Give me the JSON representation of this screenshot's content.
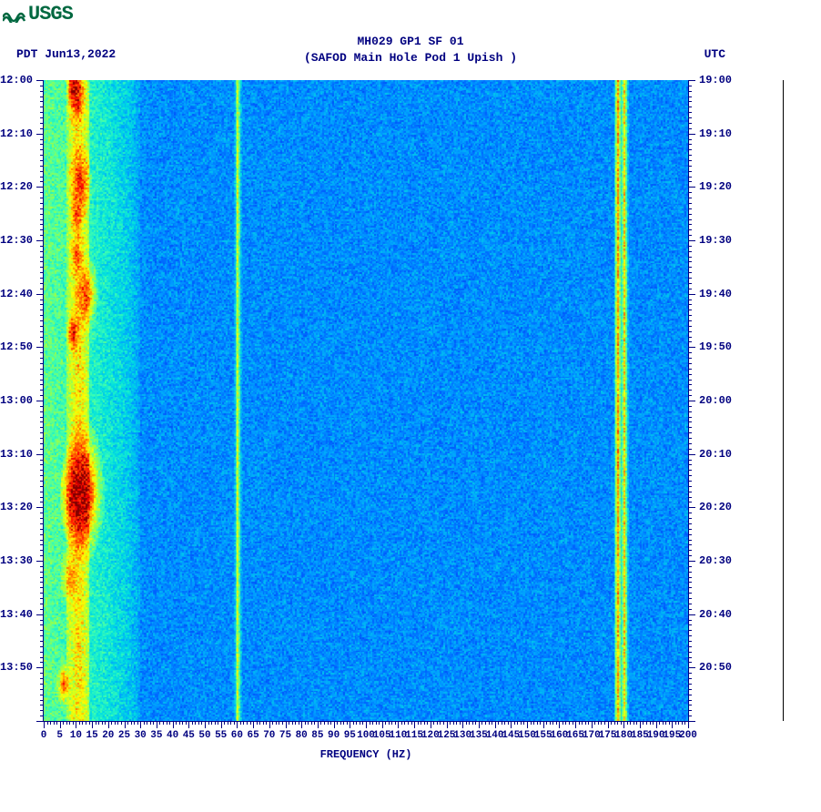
{
  "logo_text": "USGS",
  "title_line1": "MH029 GP1 SF 01",
  "title_line2": "(SAFOD Main Hole Pod 1 Upish )",
  "pdt_label": "PDT  Jun13,2022",
  "utc_label": "UTC",
  "x_axis_title": "FREQUENCY (HZ)",
  "spectrogram": {
    "type": "heatmap",
    "x_range": [
      0,
      200
    ],
    "y_range_minutes": [
      0,
      120
    ],
    "pdt_start_hour": 12,
    "pdt_start_min": 0,
    "utc_start_hour": 19,
    "utc_start_min": 0,
    "tick_interval_min": 10,
    "minor_tick_min": 1,
    "x_tick_interval": 5,
    "x_minor_tick": 1,
    "colormap": {
      "stops": [
        {
          "v": 0.0,
          "c": "#000080"
        },
        {
          "v": 0.12,
          "c": "#0020e0"
        },
        {
          "v": 0.25,
          "c": "#0060ff"
        },
        {
          "v": 0.35,
          "c": "#00a0ff"
        },
        {
          "v": 0.45,
          "c": "#00e0e0"
        },
        {
          "v": 0.55,
          "c": "#40ffb0"
        },
        {
          "v": 0.65,
          "c": "#a0ff40"
        },
        {
          "v": 0.75,
          "c": "#ffff00"
        },
        {
          "v": 0.85,
          "c": "#ff8000"
        },
        {
          "v": 0.95,
          "c": "#ff0000"
        },
        {
          "v": 1.0,
          "c": "#800000"
        }
      ]
    },
    "background_level": 0.32,
    "low_freq_band": {
      "freq_range": [
        0,
        30
      ],
      "level": 0.58
    },
    "hot_band": {
      "freq_range": [
        7,
        14
      ],
      "level": 0.8
    },
    "vertical_lines": [
      {
        "freq": 60,
        "level": 0.7,
        "width": 1.2
      },
      {
        "freq": 178,
        "level": 0.82,
        "width": 1.4
      },
      {
        "freq": 180,
        "level": 0.78,
        "width": 1.2
      }
    ],
    "events": [
      {
        "t_min": 1,
        "freq": 9,
        "intensity": 0.98,
        "radius": 3
      },
      {
        "t_min": 3,
        "freq": 10,
        "intensity": 0.95,
        "radius": 4
      },
      {
        "t_min": 19,
        "freq": 11,
        "intensity": 0.92,
        "radius": 5
      },
      {
        "t_min": 25,
        "freq": 10,
        "intensity": 0.9,
        "radius": 3
      },
      {
        "t_min": 33,
        "freq": 10,
        "intensity": 0.88,
        "radius": 3
      },
      {
        "t_min": 40,
        "freq": 13,
        "intensity": 0.9,
        "radius": 5
      },
      {
        "t_min": 47,
        "freq": 9,
        "intensity": 0.95,
        "radius": 3
      },
      {
        "t_min": 77,
        "freq": 12,
        "intensity": 1.0,
        "radius": 9
      },
      {
        "t_min": 78,
        "freq": 10,
        "intensity": 0.98,
        "radius": 7
      },
      {
        "t_min": 93,
        "freq": 8,
        "intensity": 0.85,
        "radius": 4
      },
      {
        "t_min": 113,
        "freq": 6,
        "intensity": 0.9,
        "radius": 3
      }
    ],
    "noise_amplitude": 0.07,
    "grid_nx": 400,
    "grid_ny": 400
  },
  "colors": {
    "text": "#000080",
    "logo": "#006840",
    "bg": "#ffffff",
    "axis": "#000080"
  },
  "fonts": {
    "mono": "Courier New",
    "title_size": 13,
    "tick_size": 12
  }
}
